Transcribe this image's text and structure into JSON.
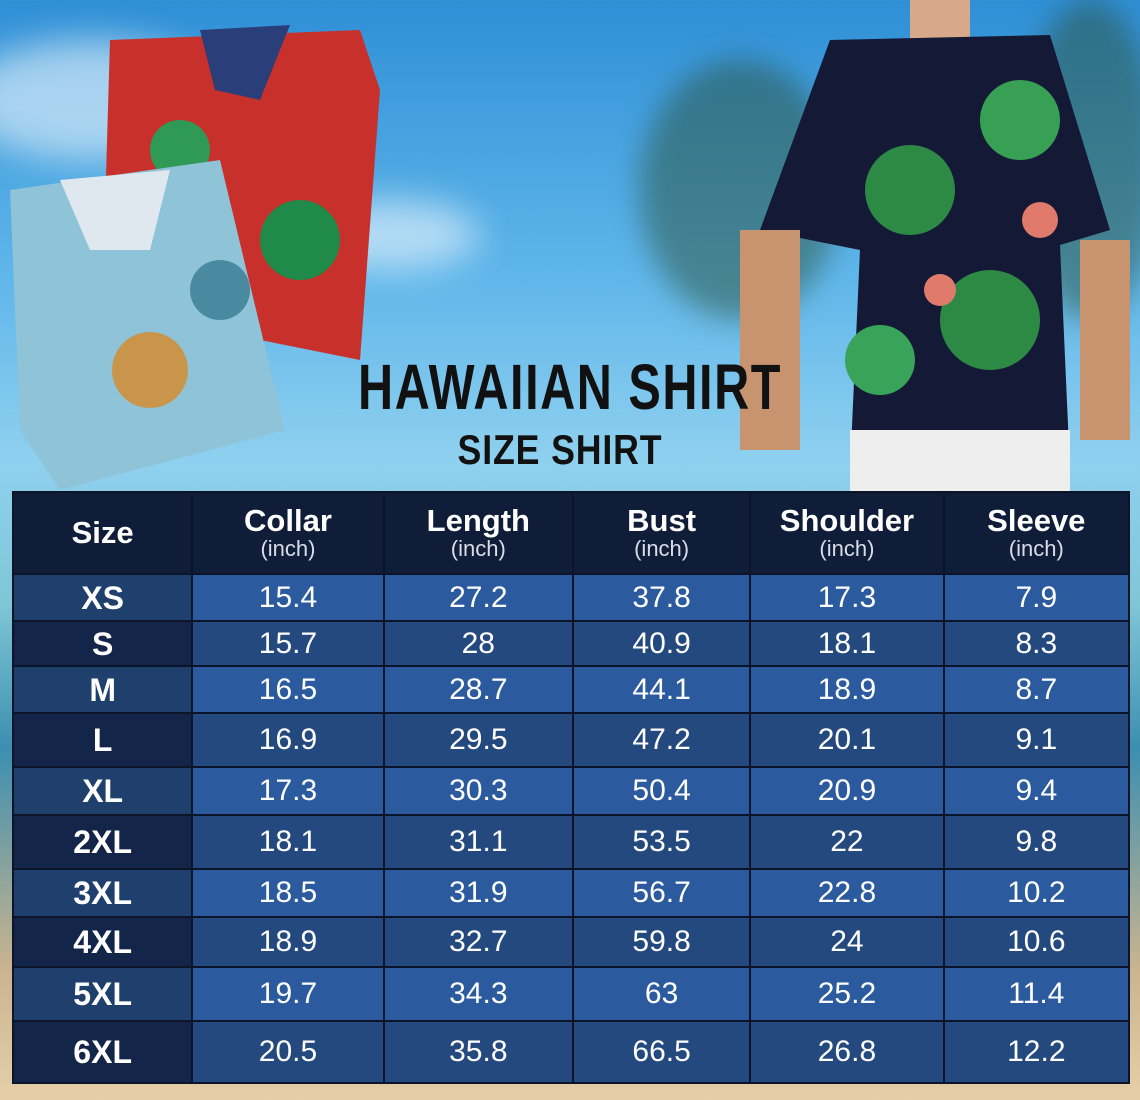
{
  "title": "HAWAIIAN SHIRT",
  "subtitle": "SIZE SHIRT",
  "colors": {
    "header_bg": "#0f1d38",
    "row_light": "#2b5b9e",
    "row_dark": "#24497f",
    "size_col_dark": "#13264a",
    "title": "#111111"
  },
  "table": {
    "headers": [
      {
        "label": "Size",
        "unit": ""
      },
      {
        "label": "Collar",
        "unit": "(inch)"
      },
      {
        "label": "Length",
        "unit": "(inch)"
      },
      {
        "label": "Bust",
        "unit": "(inch)"
      },
      {
        "label": "Shoulder",
        "unit": "(inch)"
      },
      {
        "label": "Sleeve",
        "unit": "(inch)"
      }
    ],
    "rows": [
      [
        "XS",
        "15.4",
        "27.2",
        "37.8",
        "17.3",
        "7.9"
      ],
      [
        "S",
        "15.7",
        "28",
        "40.9",
        "18.1",
        "8.3"
      ],
      [
        "M",
        "16.5",
        "28.7",
        "44.1",
        "18.9",
        "8.7"
      ],
      [
        "L",
        "16.9",
        "29.5",
        "47.2",
        "20.1",
        "9.1"
      ],
      [
        "XL",
        "17.3",
        "30.3",
        "50.4",
        "20.9",
        "9.4"
      ],
      [
        "2XL",
        "18.1",
        "31.1",
        "53.5",
        "22",
        "9.8"
      ],
      [
        "3XL",
        "18.5",
        "31.9",
        "56.7",
        "22.8",
        "10.2"
      ],
      [
        "4XL",
        "18.9",
        "32.7",
        "59.8",
        "24",
        "10.6"
      ],
      [
        "5XL",
        "19.7",
        "34.3",
        "63",
        "25.2",
        "11.4"
      ],
      [
        "6XL",
        "20.5",
        "35.8",
        "66.5",
        "26.8",
        "12.2"
      ]
    ]
  }
}
